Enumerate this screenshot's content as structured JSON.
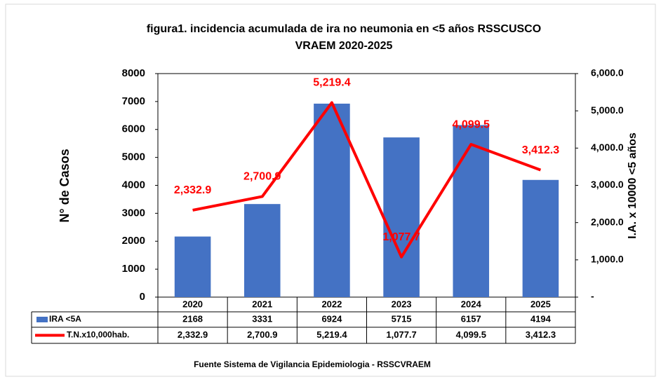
{
  "chart_data": {
    "type": "bar",
    "title_lines": [
      "figura1. incidencia acumulada de ira no neumonia en <5 años RSSCUSCO",
      "VRAEM 2020-2025"
    ],
    "ylabel": "N° de Casos",
    "y2label": "I.A. x 10000 <5 años",
    "source": "Fuente Sistema de Vigilancia Epidemiologia - RSSCVRAEM",
    "categories": [
      "2020",
      "2021",
      "2022",
      "2023",
      "2024",
      "2025"
    ],
    "series": [
      {
        "name": "IRA <5A",
        "type": "bar",
        "color": "#4472c4",
        "values": [
          2168,
          3331,
          6924,
          5715,
          6157,
          4194
        ]
      },
      {
        "name": "T.N.x10,000hab.",
        "type": "line",
        "axis": "y2",
        "color": "#ff0000",
        "values": [
          2332.9,
          2700.9,
          5219.4,
          1077.7,
          4099.5,
          3412.3
        ],
        "value_labels": [
          "2,332.9",
          "2,700.9",
          "5,219.4",
          "1,077.7",
          "4,099.5",
          "3,412.3"
        ]
      }
    ],
    "ylim": [
      0,
      8000
    ],
    "yticks": [
      0,
      1000,
      2000,
      3000,
      4000,
      5000,
      6000,
      7000,
      8000
    ],
    "y2lim": [
      0,
      6000
    ],
    "y2ticks": [
      {
        "value": 0,
        "label": "-"
      },
      {
        "value": 1000,
        "label": "1,000.0"
      },
      {
        "value": 2000,
        "label": "2,000.0"
      },
      {
        "value": 3000,
        "label": "3,000.0"
      },
      {
        "value": 4000,
        "label": "4,000.0"
      },
      {
        "value": 5000,
        "label": "5,000.0"
      },
      {
        "value": 6000,
        "label": "6,000.0"
      }
    ]
  }
}
